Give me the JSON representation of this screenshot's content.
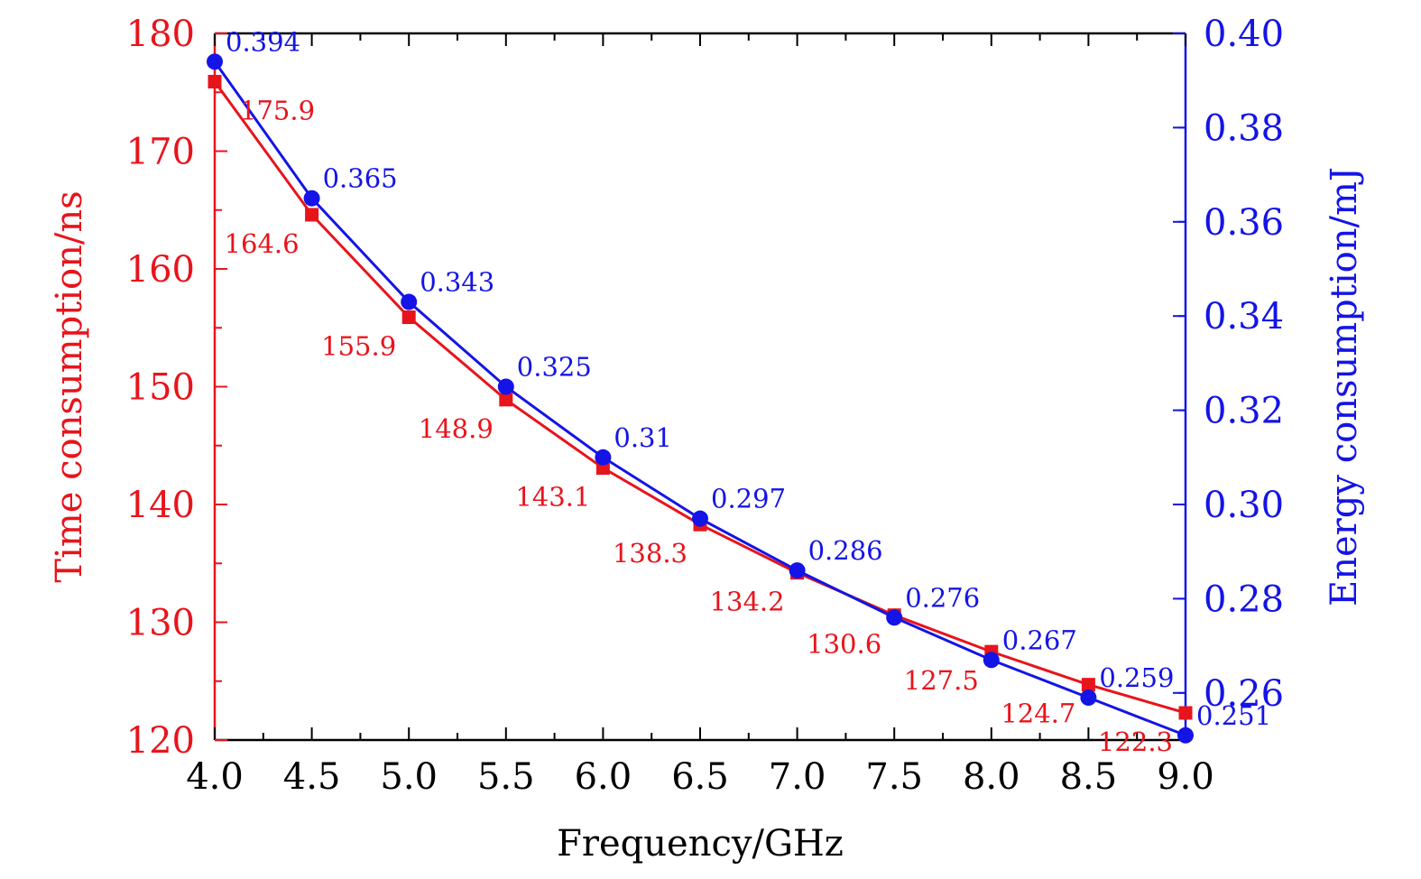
{
  "chart_data": {
    "type": "line",
    "title": "",
    "xlabel": "Frequency/GHz",
    "ylabel_left": "Time consumption/ns",
    "ylabel_right": "Energy consumption/mJ",
    "x": [
      4.0,
      4.5,
      5.0,
      5.5,
      6.0,
      6.5,
      7.0,
      7.5,
      8.0,
      8.5,
      9.0
    ],
    "xlim": [
      4.0,
      9.0
    ],
    "x_ticks": [
      "4.0",
      "4.5",
      "5.0",
      "5.5",
      "6.0",
      "6.5",
      "7.0",
      "7.5",
      "8.0",
      "8.5",
      "9.0"
    ],
    "ylim_left": [
      120,
      180
    ],
    "y_ticks_left": [
      "120",
      "130",
      "140",
      "150",
      "160",
      "170",
      "180"
    ],
    "ylim_right": [
      0.25,
      0.4
    ],
    "y_ticks_right": [
      "0.26",
      "0.28",
      "0.30",
      "0.32",
      "0.34",
      "0.36",
      "0.38",
      "0.40"
    ],
    "grid": false,
    "series": [
      {
        "name": "Time consumption",
        "axis": "left",
        "marker": "square",
        "color": "#e8141c",
        "values": [
          175.9,
          164.6,
          155.9,
          148.9,
          143.1,
          138.3,
          134.2,
          130.6,
          127.5,
          124.7,
          122.3
        ],
        "labels": [
          "175.9",
          "164.6",
          "155.9",
          "148.9",
          "143.1",
          "138.3",
          "134.2",
          "130.6",
          "127.5",
          "124.7",
          "122.3"
        ]
      },
      {
        "name": "Energy consumption",
        "axis": "right",
        "marker": "circle",
        "color": "#1414e6",
        "values": [
          0.394,
          0.365,
          0.343,
          0.325,
          0.31,
          0.297,
          0.286,
          0.276,
          0.267,
          0.259,
          0.251
        ],
        "labels": [
          "0.394",
          "0.365",
          "0.343",
          "0.325",
          "0.31",
          "0.297",
          "0.286",
          "0.276",
          "0.267",
          "0.259",
          "0.251"
        ]
      }
    ]
  }
}
